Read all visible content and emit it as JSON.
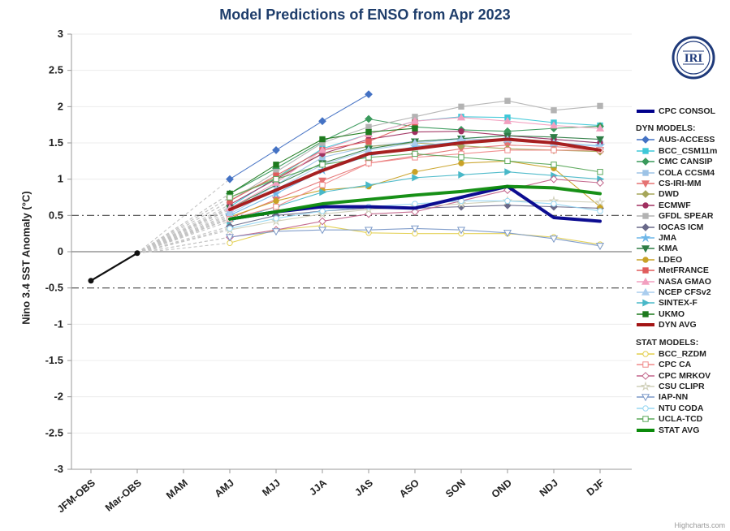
{
  "credits": "Highcharts.com",
  "logo_text": "IRI",
  "chart_data": {
    "type": "line",
    "title": "Model Predictions of ENSO from Apr 2023",
    "ylabel": "Nino 3.4 SST Anomaly (°C)",
    "ylim": [
      -3,
      3
    ],
    "ytick_step": 0.5,
    "reference_lines": {
      "zero": 0,
      "upper_dashdot": 0.5,
      "lower_dashdot": -0.5
    },
    "categories": [
      "JFM-OBS",
      "Mar-OBS",
      "MAM",
      "AMJ",
      "MJJ",
      "JJA",
      "JAS",
      "ASO",
      "SON",
      "OND",
      "NDJ",
      "DJF"
    ],
    "observations": {
      "name": "OBS",
      "color": "#111111",
      "start_index": 0,
      "values": [
        -0.4,
        -0.02
      ]
    },
    "fan": {
      "from_index": 1,
      "from_value": -0.02,
      "color": "#c4c4c4"
    },
    "series": [
      {
        "name": "CPC CONSOL",
        "color": "#00008b",
        "marker": "none",
        "open": false,
        "width": 4,
        "start_index": 3,
        "values": [
          0.45,
          0.55,
          0.62,
          0.62,
          0.6,
          0.75,
          0.9,
          0.47,
          0.42
        ]
      },
      {
        "name": "AUS-ACCESS",
        "color": "#4472c4",
        "marker": "diamond",
        "open": false,
        "width": 1.1,
        "start_index": 3,
        "values": [
          1.0,
          1.4,
          1.8,
          2.17
        ]
      },
      {
        "name": "BCC_CSM11m",
        "color": "#3fc8d8",
        "marker": "square",
        "open": false,
        "width": 1.1,
        "start_index": 3,
        "values": [
          0.62,
          1.02,
          1.42,
          1.62,
          1.8,
          1.86,
          1.85,
          1.78,
          1.74
        ]
      },
      {
        "name": "CMC CANSIP",
        "color": "#3a9a5c",
        "marker": "diamond",
        "open": false,
        "width": 1.1,
        "start_index": 3,
        "values": [
          0.8,
          1.15,
          1.52,
          1.83,
          1.72,
          1.68,
          1.66,
          1.7,
          1.73
        ]
      },
      {
        "name": "COLA CCSM4",
        "color": "#9dc3e6",
        "marker": "square",
        "open": false,
        "width": 1.1,
        "start_index": 3,
        "values": [
          0.55,
          0.92,
          1.3,
          1.45,
          1.52,
          1.56,
          1.6,
          1.55,
          1.5
        ]
      },
      {
        "name": "CS-IRI-MM",
        "color": "#e57373",
        "marker": "triangle-down",
        "open": false,
        "width": 1.1,
        "start_index": 3,
        "values": [
          0.46,
          0.72,
          0.98,
          1.22,
          1.32,
          1.42,
          1.47,
          1.45,
          1.4
        ]
      },
      {
        "name": "DWD",
        "color": "#a6a65a",
        "marker": "diamond",
        "open": false,
        "width": 1.1,
        "start_index": 3,
        "values": [
          0.75,
          1.02,
          1.35,
          1.45,
          1.5,
          1.46,
          1.42,
          1.4,
          1.38
        ]
      },
      {
        "name": "ECMWF",
        "color": "#a03060",
        "marker": "circle",
        "open": false,
        "width": 1.1,
        "start_index": 3,
        "values": [
          0.65,
          1.0,
          1.35,
          1.55,
          1.65,
          1.66,
          1.6,
          1.55,
          1.5
        ]
      },
      {
        "name": "GFDL SPEAR",
        "color": "#b3b3b3",
        "marker": "square",
        "open": false,
        "width": 1.1,
        "start_index": 3,
        "values": [
          0.7,
          1.1,
          1.5,
          1.72,
          1.86,
          2.0,
          2.08,
          1.95,
          2.01
        ]
      },
      {
        "name": "IOCAS ICM",
        "color": "#6a6a8a",
        "marker": "diamond",
        "open": false,
        "width": 1.1,
        "start_index": 3,
        "values": [
          0.35,
          0.5,
          0.56,
          0.6,
          0.6,
          0.62,
          0.64,
          0.62,
          0.6
        ]
      },
      {
        "name": "JMA",
        "color": "#6fb7e8",
        "marker": "star",
        "open": false,
        "width": 1.1,
        "start_index": 3,
        "values": [
          0.5,
          0.8,
          1.12,
          1.32,
          1.45,
          1.52,
          1.55,
          1.5,
          1.46
        ]
      },
      {
        "name": "KMA",
        "color": "#2f7d46",
        "marker": "triangle-down",
        "open": false,
        "width": 1.1,
        "start_index": 3,
        "values": [
          0.6,
          0.92,
          1.22,
          1.42,
          1.52,
          1.56,
          1.6,
          1.58,
          1.55
        ]
      },
      {
        "name": "LDEO",
        "color": "#c9a227",
        "marker": "circle",
        "open": false,
        "width": 1.1,
        "start_index": 3,
        "values": [
          0.48,
          0.7,
          0.85,
          0.9,
          1.1,
          1.22,
          1.25,
          1.15,
          0.62
        ]
      },
      {
        "name": "MetFRANCE",
        "color": "#e05c5c",
        "marker": "square",
        "open": false,
        "width": 1.1,
        "start_index": 3,
        "values": [
          0.7,
          1.05,
          1.4,
          1.52,
          1.78
        ]
      },
      {
        "name": "NASA GMAO",
        "color": "#f2a0c0",
        "marker": "triangle-up",
        "open": false,
        "width": 1.1,
        "start_index": 3,
        "values": [
          0.6,
          0.95,
          1.4,
          1.62,
          1.8,
          1.85,
          1.8,
          1.74,
          1.7
        ]
      },
      {
        "name": "NCEP CFSv2",
        "color": "#aacdee",
        "marker": "triangle-up",
        "open": false,
        "width": 1.1,
        "start_index": 3,
        "values": [
          0.52,
          0.86,
          1.2,
          1.4,
          1.5,
          1.55,
          1.55,
          1.5,
          1.45
        ]
      },
      {
        "name": "SINTEX-F",
        "color": "#49b8c8",
        "marker": "triangle-right",
        "open": false,
        "width": 1.1,
        "start_index": 3,
        "values": [
          0.42,
          0.62,
          0.82,
          0.92,
          1.02,
          1.06,
          1.1,
          1.05,
          1.0
        ]
      },
      {
        "name": "UKMO",
        "color": "#1e7a1e",
        "marker": "square",
        "open": false,
        "width": 1.1,
        "start_index": 3,
        "values": [
          0.8,
          1.2,
          1.55,
          1.65,
          1.7
        ]
      },
      {
        "name": "DYN AVG",
        "color": "#a31515",
        "marker": "none",
        "open": false,
        "width": 4,
        "start_index": 3,
        "values": [
          0.58,
          0.85,
          1.12,
          1.35,
          1.42,
          1.5,
          1.55,
          1.5,
          1.4
        ]
      },
      {
        "name": "BCC_RZDM",
        "color": "#e3cf4e",
        "marker": "circle",
        "open": true,
        "width": 1.1,
        "start_index": 3,
        "values": [
          0.12,
          0.3,
          0.36,
          0.26,
          0.25,
          0.25,
          0.25,
          0.2,
          0.1
        ]
      },
      {
        "name": "CPC CA",
        "color": "#f08a8a",
        "marker": "square",
        "open": true,
        "width": 1.1,
        "start_index": 3,
        "values": [
          0.45,
          0.62,
          0.92,
          1.22,
          1.3,
          1.35,
          1.4,
          1.4,
          1.4
        ]
      },
      {
        "name": "CPC MRKOV",
        "color": "#c2648a",
        "marker": "diamond",
        "open": true,
        "width": 1.1,
        "start_index": 3,
        "values": [
          0.2,
          0.3,
          0.42,
          0.52,
          0.55,
          0.7,
          0.85,
          1.0,
          0.95
        ]
      },
      {
        "name": "CSU CLIPR",
        "color": "#cfcfb8",
        "marker": "star",
        "open": true,
        "width": 1.1,
        "start_index": 3,
        "values": [
          0.3,
          0.42,
          0.52,
          0.58,
          0.62,
          0.66,
          0.7,
          0.7,
          0.68
        ]
      },
      {
        "name": "IAP-NN",
        "color": "#7b99c8",
        "marker": "triangle-down",
        "open": true,
        "width": 1.1,
        "start_index": 3,
        "values": [
          0.2,
          0.28,
          0.3,
          0.3,
          0.32,
          0.3,
          0.26,
          0.18,
          0.08
        ]
      },
      {
        "name": "NTU CODA",
        "color": "#97d7f2",
        "marker": "circle",
        "open": true,
        "width": 1.1,
        "start_index": 3,
        "values": [
          0.32,
          0.46,
          0.56,
          0.62,
          0.66,
          0.7,
          0.7,
          0.66,
          0.56
        ]
      },
      {
        "name": "UCLA-TCD",
        "color": "#5aa85a",
        "marker": "square",
        "open": true,
        "width": 1.1,
        "start_index": 3,
        "values": [
          0.75,
          1.0,
          1.2,
          1.3,
          1.35,
          1.3,
          1.25,
          1.2,
          1.1
        ]
      },
      {
        "name": "STAT AVG",
        "color": "#0b8a0b",
        "marker": "none",
        "open": false,
        "width": 4,
        "start_index": 3,
        "values": [
          0.45,
          0.55,
          0.66,
          0.72,
          0.78,
          0.83,
          0.9,
          0.88,
          0.8
        ]
      }
    ],
    "legend_sections": [
      {
        "header": "",
        "items": [
          "CPC CONSOL"
        ]
      },
      {
        "header": "DYN MODELS:",
        "items": [
          "AUS-ACCESS",
          "BCC_CSM11m",
          "CMC CANSIP",
          "COLA CCSM4",
          "CS-IRI-MM",
          "DWD",
          "ECMWF",
          "GFDL SPEAR",
          "IOCAS ICM",
          "JMA",
          "KMA",
          "LDEO",
          "MetFRANCE",
          "NASA GMAO",
          "NCEP CFSv2",
          "SINTEX-F",
          "UKMO",
          "DYN AVG"
        ]
      },
      {
        "header": "STAT MODELS:",
        "items": [
          "BCC_RZDM",
          "CPC CA",
          "CPC MRKOV",
          "CSU CLIPR",
          "IAP-NN",
          "NTU CODA",
          "UCLA-TCD",
          "STAT AVG"
        ]
      }
    ]
  }
}
